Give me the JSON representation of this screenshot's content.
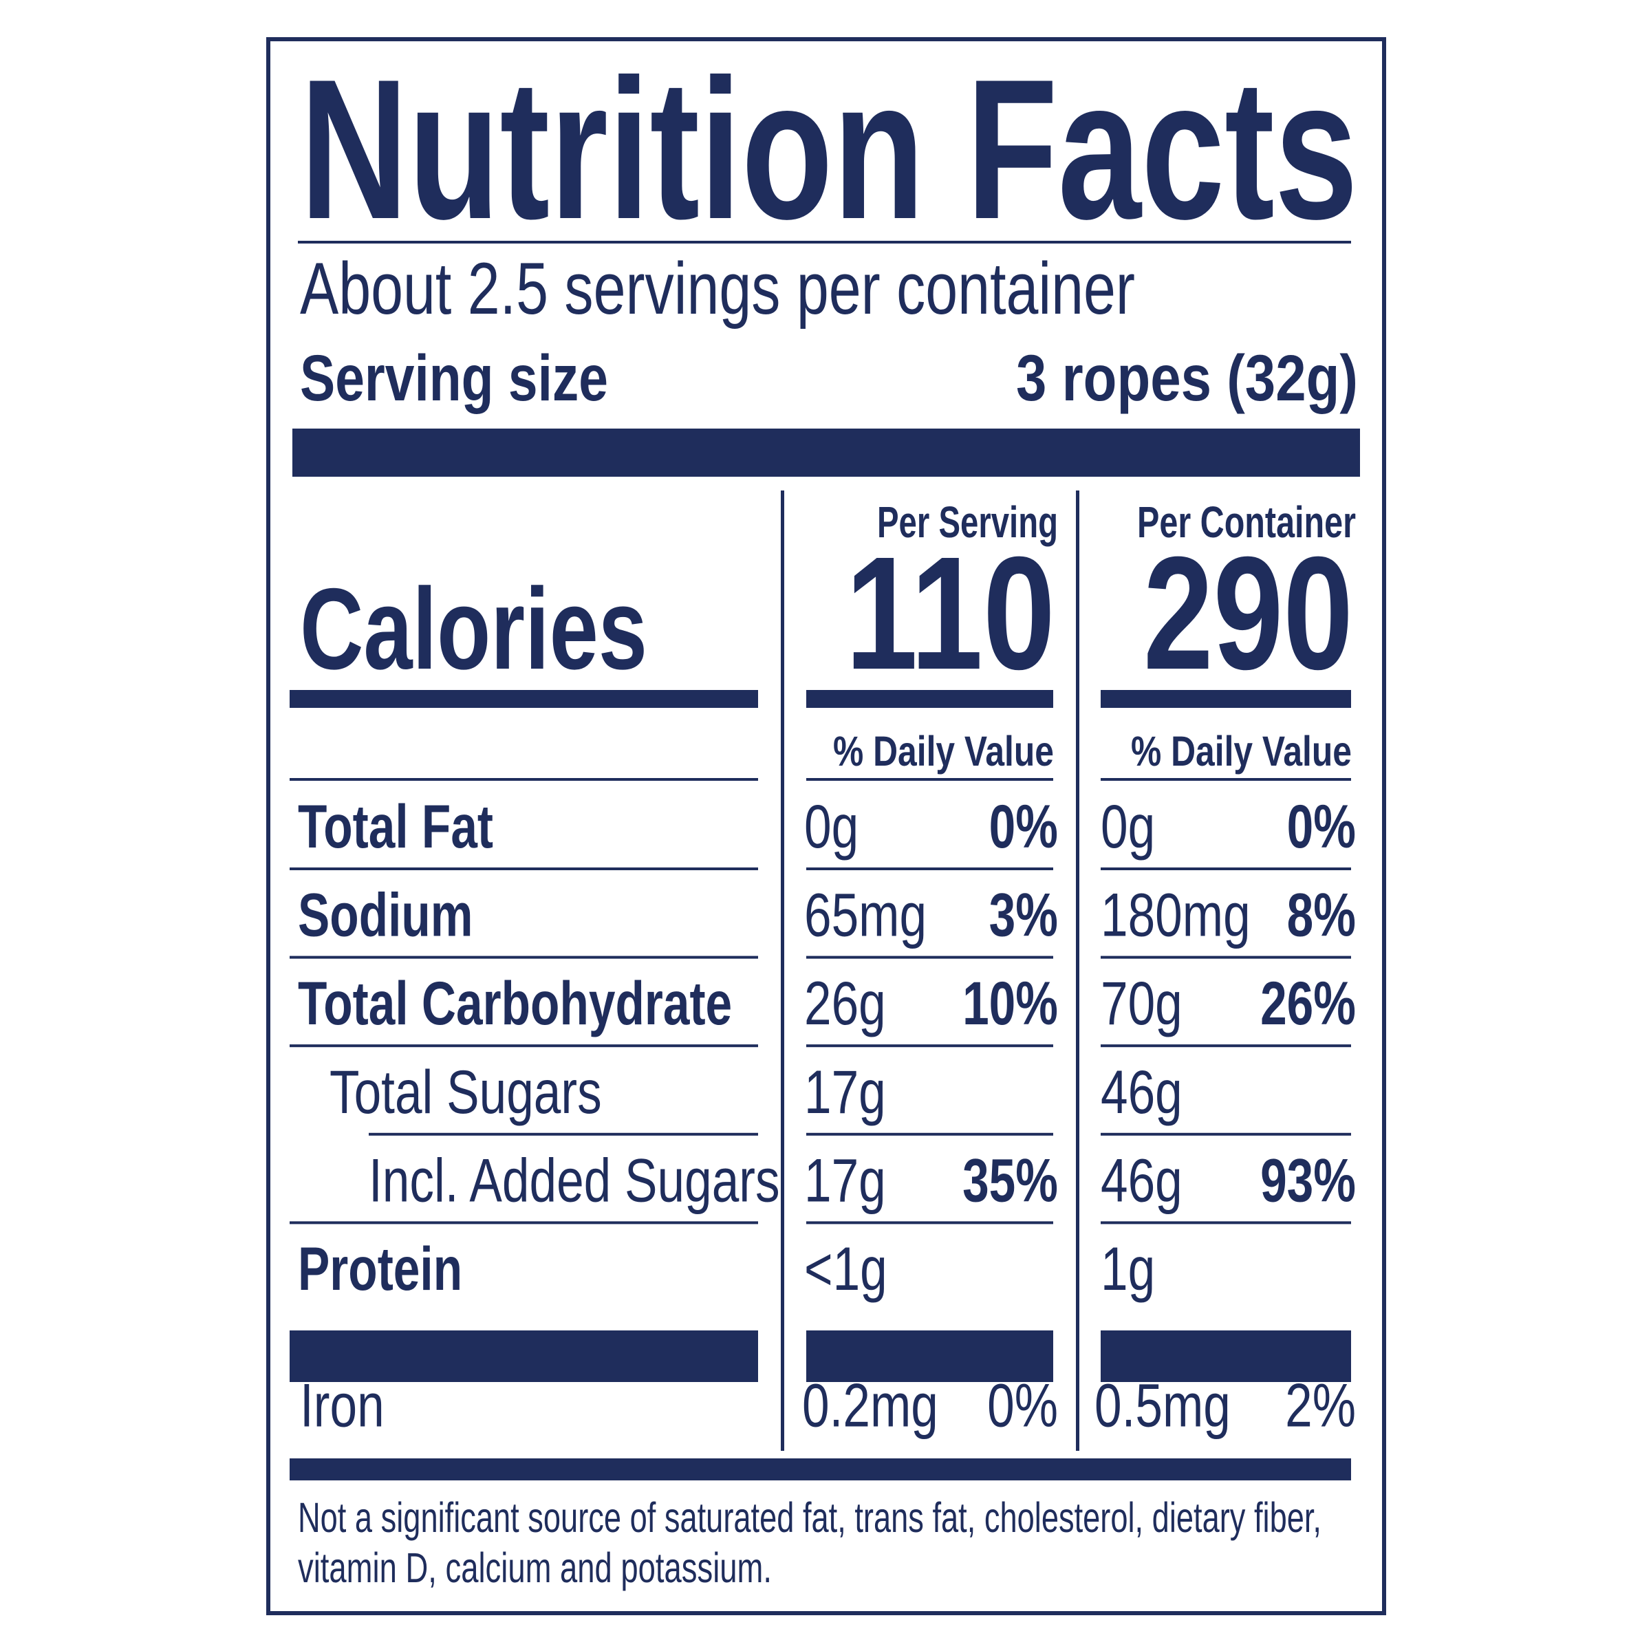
{
  "title": "Nutrition Facts",
  "servings": "About 2.5 servings per container",
  "serving_size": {
    "label": "Serving size",
    "value": "3 ropes (32g)"
  },
  "calories": {
    "label": "Calories",
    "columns": [
      {
        "header": "Per Serving",
        "value": "110",
        "dv_header": "% Daily Value"
      },
      {
        "header": "Per Container",
        "value": "290",
        "dv_header": "% Daily Value"
      }
    ]
  },
  "nutrients": [
    {
      "label": "Total Fat",
      "per_serving": {
        "amount": "0g",
        "dv": "0%"
      },
      "per_container": {
        "amount": "0g",
        "dv": "0%"
      }
    },
    {
      "label": "Sodium",
      "per_serving": {
        "amount": "65mg",
        "dv": "3%"
      },
      "per_container": {
        "amount": "180mg",
        "dv": "8%"
      }
    },
    {
      "label": "Total Carbohydrate",
      "per_serving": {
        "amount": "26g",
        "dv": "10%"
      },
      "per_container": {
        "amount": "70g",
        "dv": "26%"
      },
      "sub": [
        {
          "label": "Total Sugars",
          "per_serving": {
            "amount": "17g"
          },
          "per_container": {
            "amount": "46g"
          },
          "sub": [
            {
              "label": "Incl. Added Sugars",
              "per_serving": {
                "amount": "17g",
                "dv": "35%"
              },
              "per_container": {
                "amount": "46g",
                "dv": "93%"
              }
            }
          ]
        }
      ]
    },
    {
      "label": "Protein",
      "per_serving": {
        "amount": "<1g"
      },
      "per_container": {
        "amount": "1g"
      }
    }
  ],
  "vitamins_minerals": [
    {
      "label": "Iron",
      "per_serving": {
        "amount": "0.2mg",
        "dv": "0%"
      },
      "per_container": {
        "amount": "0.5mg",
        "dv": "2%"
      }
    }
  ],
  "footnote": [
    "Not a significant source of saturated fat, trans fat, cholesterol, dietary fiber,",
    "vitamin D, calcium and potassium."
  ]
}
